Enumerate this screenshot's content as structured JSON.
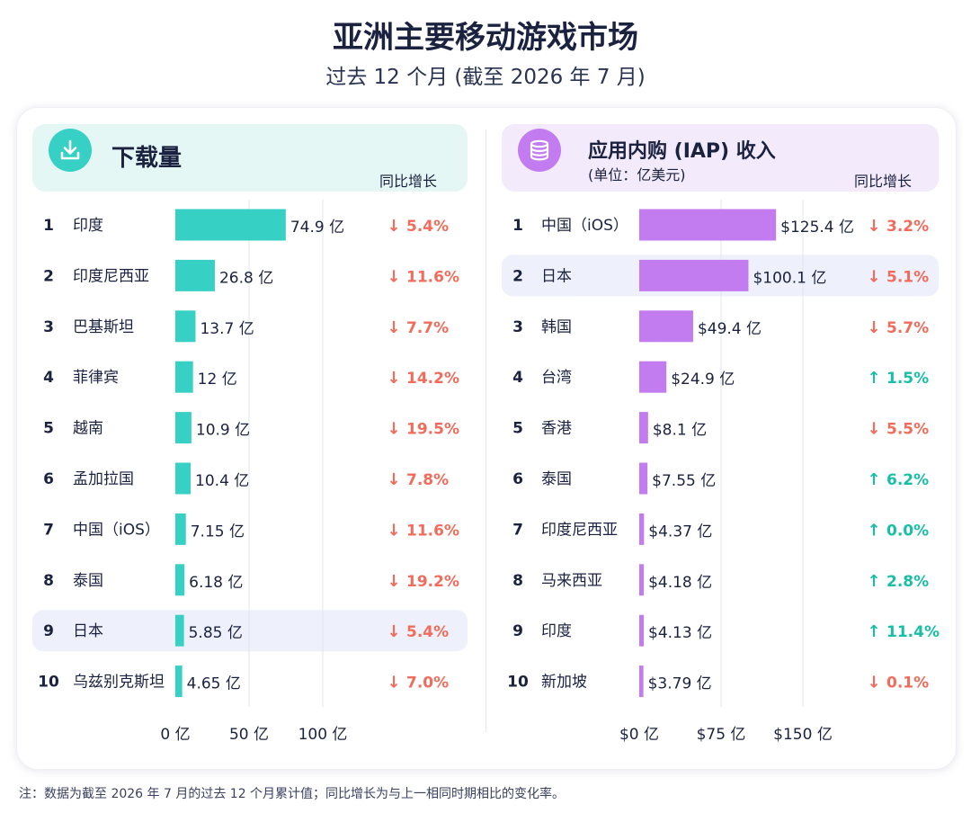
{
  "title": "亚洲主要移动游戏市场",
  "subtitle": "过去 12 个月 (截至 2026 年 7 月)",
  "footnote": "注：数据为截至 2026 年 7 月的过去 12 个月累计值；同比增长为与上一相同时期相比的变化率。",
  "colors": {
    "download_bar": "#36d1c4",
    "revenue_bar": "#c27cf0",
    "down": "#f26b5b",
    "up": "#18bfa6",
    "highlight": "#eef0fb",
    "download_header_bg": "#e5f7f5",
    "revenue_header_bg": "#f3eafc"
  },
  "icons": {
    "downloads": "download-icon",
    "revenue": "coins-icon",
    "arrow_down": "arrow-down-icon",
    "arrow_up": "arrow-up-icon"
  },
  "panels": {
    "downloads": {
      "title": "下载量",
      "yoy_header": "同比增长"
    },
    "revenue": {
      "title": "应用内购 (IAP) 收入",
      "unit": "(单位：亿美元)",
      "yoy_header": "同比增长"
    }
  },
  "chart_data": [
    {
      "type": "bar",
      "orientation": "horizontal",
      "title": "下载量",
      "unit": "亿",
      "xlim": [
        0,
        100
      ],
      "xticks": [
        0,
        50,
        100
      ],
      "xtick_labels": [
        "0 亿",
        "50 亿",
        "100 亿"
      ],
      "grid": true,
      "highlighted_rank": 9,
      "ranks": [
        "1",
        "2",
        "3",
        "4",
        "5",
        "6",
        "7",
        "8",
        "9",
        "10"
      ],
      "categories": [
        "印度",
        "印度尼西亚",
        "巴基斯坦",
        "菲律宾",
        "越南",
        "孟加拉国",
        "中国（iOS）",
        "泰国",
        "日本",
        "乌兹别克斯坦"
      ],
      "values": [
        74.9,
        26.8,
        13.7,
        12,
        10.9,
        10.4,
        7.15,
        6.18,
        5.85,
        4.65
      ],
      "value_labels": [
        "74.9 亿",
        "26.8 亿",
        "13.7 亿",
        "12 亿",
        "10.9 亿",
        "10.4 亿",
        "7.15 亿",
        "6.18 亿",
        "5.85 亿",
        "4.65 亿"
      ],
      "yoy": [
        -5.4,
        -11.6,
        -7.7,
        -14.2,
        -19.5,
        -7.8,
        -11.6,
        -19.2,
        -5.4,
        -7.0
      ],
      "yoy_labels": [
        "5.4%",
        "11.6%",
        "7.7%",
        "14.2%",
        "19.5%",
        "7.8%",
        "11.6%",
        "19.2%",
        "5.4%",
        "7.0%"
      ]
    },
    {
      "type": "bar",
      "orientation": "horizontal",
      "title": "应用内购 (IAP) 收入",
      "unit": "亿美元",
      "xlim": [
        0,
        150
      ],
      "xticks": [
        0,
        75,
        150
      ],
      "xtick_labels": [
        "$0 亿",
        "$75 亿",
        "$150 亿"
      ],
      "grid": true,
      "highlighted_rank": 2,
      "ranks": [
        "1",
        "2",
        "3",
        "4",
        "5",
        "6",
        "7",
        "8",
        "9",
        "10"
      ],
      "categories": [
        "中国（iOS）",
        "日本",
        "韩国",
        "台湾",
        "香港",
        "泰国",
        "印度尼西亚",
        "马来西亚",
        "印度",
        "新加坡"
      ],
      "values": [
        125.4,
        100.1,
        49.4,
        24.9,
        8.1,
        7.55,
        4.37,
        4.18,
        4.13,
        3.79
      ],
      "value_labels": [
        "$125.4 亿",
        "$100.1 亿",
        "$49.4 亿",
        "$24.9 亿",
        "$8.1 亿",
        "$7.55 亿",
        "$4.37 亿",
        "$4.18 亿",
        "$4.13 亿",
        "$3.79 亿"
      ],
      "yoy": [
        -3.2,
        -5.1,
        -5.7,
        1.5,
        -5.5,
        6.2,
        0.0,
        2.8,
        11.4,
        -0.1
      ],
      "yoy_labels": [
        "3.2%",
        "5.1%",
        "5.7%",
        "1.5%",
        "5.5%",
        "6.2%",
        "0.0%",
        "2.8%",
        "11.4%",
        "0.1%"
      ]
    }
  ]
}
